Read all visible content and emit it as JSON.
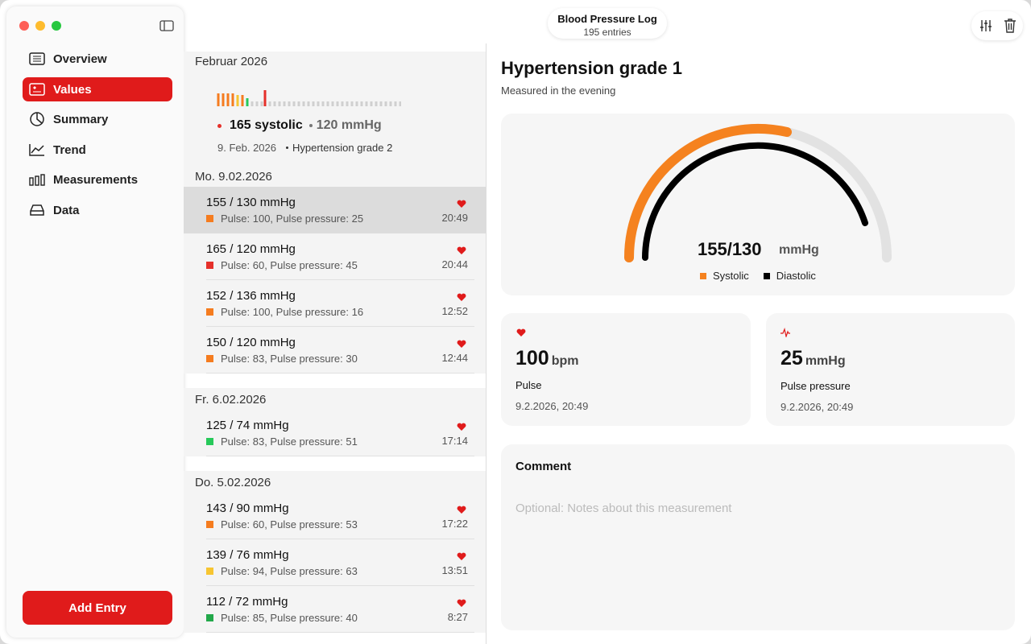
{
  "window": {
    "title": "Blood Pressure Log",
    "subtitle": "195 entries"
  },
  "sidebar": {
    "items": [
      "Overview",
      "Values",
      "Summary",
      "Trend",
      "Measurements",
      "Data"
    ],
    "add_button": "Add Entry"
  },
  "list": {
    "month": "Februar 2026",
    "summary": {
      "systolic": "165 systolic",
      "diastolic": "120 mmHg",
      "date": "9. Feb. 2026",
      "classification": "Hypertension grade 2"
    },
    "groups": [
      {
        "date": "Mo. 9.02.2026",
        "entries": [
          {
            "reading": "155 / 130 mmHg",
            "details": "Pulse: 100, Pulse pressure: 25",
            "time": "20:49",
            "color": "#f57c1f"
          },
          {
            "reading": "165 / 120 mmHg",
            "details": "Pulse: 60, Pulse pressure: 45",
            "time": "20:44",
            "color": "#e5302a"
          },
          {
            "reading": "152 / 136 mmHg",
            "details": "Pulse: 100, Pulse pressure: 16",
            "time": "12:52",
            "color": "#f57c1f"
          },
          {
            "reading": "150 / 120 mmHg",
            "details": "Pulse: 83, Pulse pressure: 30",
            "time": "12:44",
            "color": "#f57c1f"
          }
        ]
      },
      {
        "date": "Fr. 6.02.2026",
        "entries": [
          {
            "reading": "125 / 74 mmHg",
            "details": "Pulse: 83, Pulse pressure: 51",
            "time": "17:14",
            "color": "#27c95a"
          }
        ]
      },
      {
        "date": "Do. 5.02.2026",
        "entries": [
          {
            "reading": "143 / 90 mmHg",
            "details": "Pulse: 60, Pulse pressure: 53",
            "time": "17:22",
            "color": "#f57c1f"
          },
          {
            "reading": "139 / 76 mmHg",
            "details": "Pulse: 94, Pulse pressure: 63",
            "time": "13:51",
            "color": "#f7c531"
          },
          {
            "reading": "112 / 72 mmHg",
            "details": "Pulse: 85, Pulse pressure: 40",
            "time": "8:27",
            "color": "#22a84a"
          }
        ]
      }
    ]
  },
  "detail": {
    "title": "Hypertension grade 1",
    "subtitle": "Measured in the evening",
    "gauge": {
      "value": "155/130",
      "unit": "mmHg",
      "legend": [
        "Systolic",
        "Diastolic"
      ]
    },
    "cards": [
      {
        "value": "100",
        "unit": "bpm",
        "label": "Pulse",
        "date": "9.2.2026, 20:49"
      },
      {
        "value": "25",
        "unit": "mmHg",
        "label": "Pulse pressure",
        "date": "9.2.2026, 20:49"
      }
    ],
    "comment": {
      "title": "Comment",
      "placeholder": "Optional: Notes about this measurement"
    }
  }
}
